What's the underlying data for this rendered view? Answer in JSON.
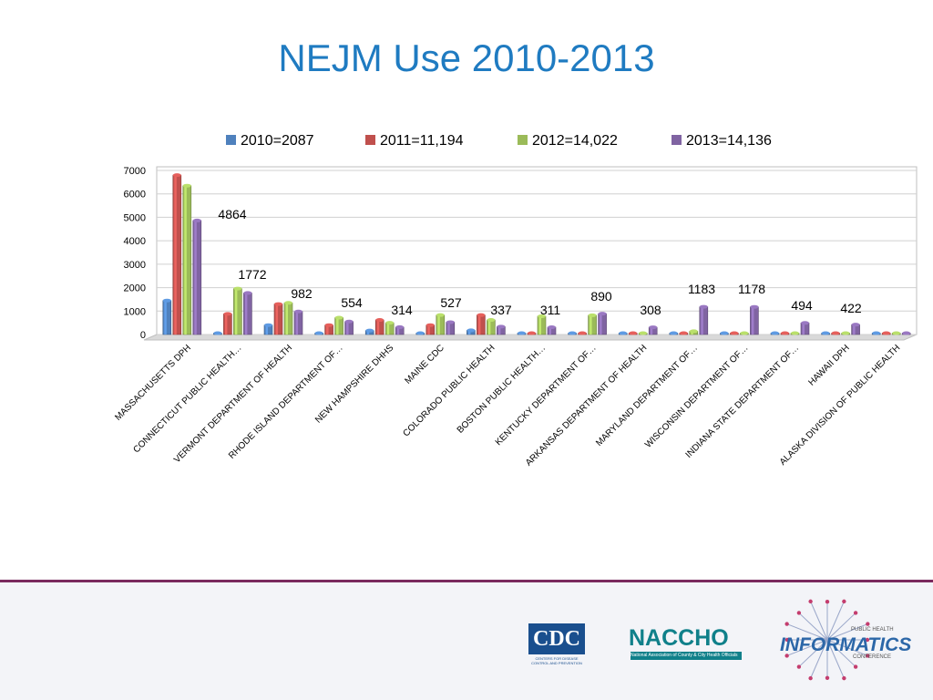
{
  "slide": {
    "title": "NEJM Use 2010-2013"
  },
  "chart_data": {
    "type": "bar",
    "title": "NEJM Use 2010-2013",
    "xlabel": "",
    "ylabel": "",
    "ylim": [
      0,
      7000
    ],
    "yticks": [
      0,
      1000,
      2000,
      3000,
      4000,
      5000,
      6000,
      7000
    ],
    "grid": true,
    "legend_position": "top",
    "categories": [
      "MASSACHUSETTS DPH",
      "CONNECTICUT PUBLIC HEALTH…",
      "VERMONT DEPARTMENT OF HEALTH",
      "RHODE ISLAND DEPARTMENT OF…",
      "NEW HAMPSHIRE DHHS",
      "MAINE CDC",
      "COLORADO PUBLIC HEALTH",
      "BOSTON PUBLIC HEALTH…",
      "KENTUCKY DEPARTMENT OF…",
      "ARKANSAS DEPARTMENT OF HEALTH",
      "MARYLAND DEPARTMENT OF…",
      "WISCONSIN DEPARTMENT OF…",
      "INDIANA STATE DEPARTMENT OF…",
      "HAWAII DPH",
      "ALASKA DIVISION OF PUBLIC HEALTH"
    ],
    "series": [
      {
        "name": "2010=2087",
        "color": "#4f81bd",
        "values": [
          1450,
          30,
          400,
          30,
          170,
          30,
          180,
          20,
          20,
          20,
          20,
          20,
          20,
          20,
          20
        ]
      },
      {
        "name": "2011=11,194",
        "color": "#c0504d",
        "values": [
          6800,
          880,
          1300,
          400,
          620,
          400,
          830,
          20,
          20,
          20,
          20,
          20,
          20,
          20,
          20
        ]
      },
      {
        "name": "2012=14,022",
        "color": "#9bbb59",
        "values": [
          6350,
          1960,
          1350,
          720,
          500,
          830,
          620,
          780,
          820,
          20,
          140,
          20,
          20,
          20,
          20
        ]
      },
      {
        "name": "2013=14,136",
        "color": "#8064a2",
        "values": [
          4864,
          1772,
          982,
          554,
          314,
          527,
          337,
          311,
          890,
          308,
          1183,
          1178,
          494,
          422,
          20
        ]
      }
    ],
    "data_labels": [
      "4864",
      "1772",
      "982",
      "554",
      "314",
      "527",
      "337",
      "311",
      "890",
      "308",
      "1183",
      "1178",
      "494",
      "422"
    ]
  },
  "footer": {
    "cdc_logo": "CDC",
    "cdc_tagline": "CENTERS FOR DISEASE CONTROL AND PREVENTION",
    "naccho_logo": "NACCHO",
    "naccho_tagline": "National Association of County & City Health Officials",
    "phi_top": "PUBLIC HEALTH",
    "phi_main": "INFORMATICS",
    "phi_bottom": "CONFERENCE"
  }
}
